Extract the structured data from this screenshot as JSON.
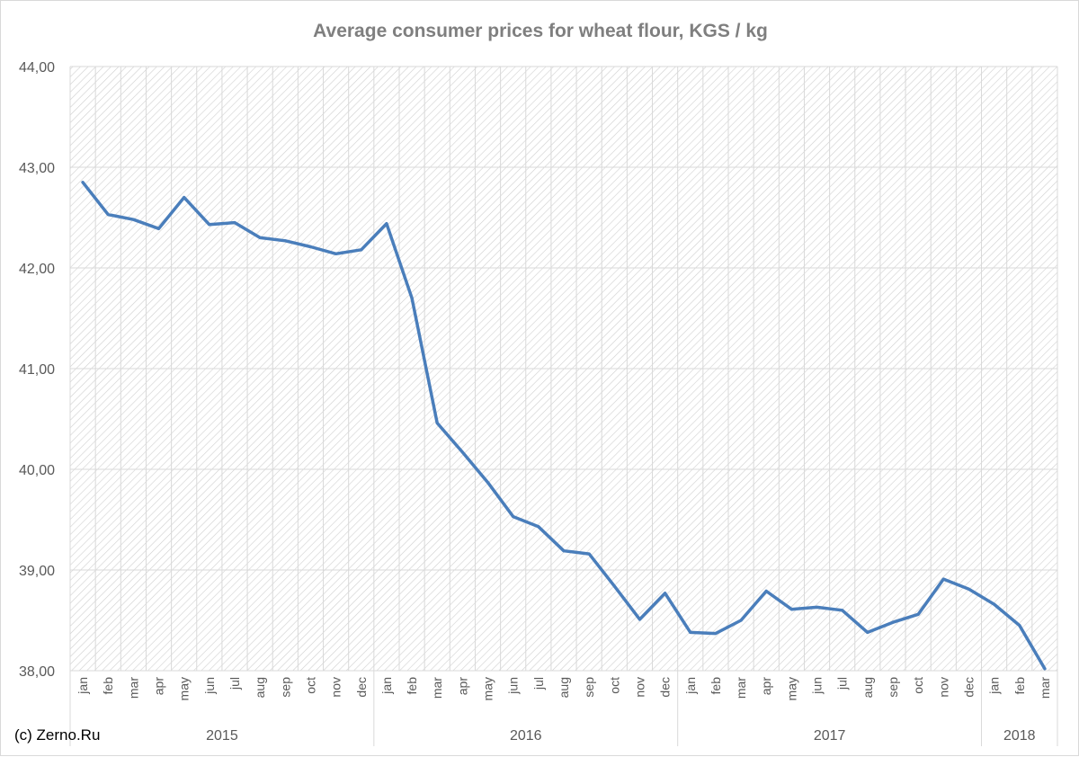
{
  "colors": {
    "line": "#4a7ebb",
    "grid": "#d9d9d9",
    "hatch": "#d0d0d0",
    "text": "#595959",
    "title": "#7f7f7f"
  },
  "copyright": "(c) Zerno.Ru",
  "chart_data": {
    "type": "line",
    "title": "Average consumer prices for wheat flour, KGS / kg",
    "xlabel": "",
    "ylabel": "",
    "ylim": [
      38,
      44
    ],
    "yticks": [
      "38,00",
      "39,00",
      "40,00",
      "41,00",
      "42,00",
      "43,00",
      "44,00"
    ],
    "grid": true,
    "legend": "none",
    "categories": [
      "jan",
      "feb",
      "mar",
      "apr",
      "may",
      "jun",
      "jul",
      "aug",
      "sep",
      "oct",
      "nov",
      "dec",
      "jan",
      "feb",
      "mar",
      "apr",
      "may",
      "jun",
      "jul",
      "aug",
      "sep",
      "oct",
      "nov",
      "dec",
      "jan",
      "feb",
      "mar",
      "apr",
      "may",
      "jun",
      "jul",
      "aug",
      "sep",
      "oct",
      "nov",
      "dec",
      "jan",
      "feb",
      "mar"
    ],
    "year_groups": [
      {
        "label": "2015",
        "count": 12
      },
      {
        "label": "2016",
        "count": 12
      },
      {
        "label": "2017",
        "count": 12
      },
      {
        "label": "2018",
        "count": 3
      }
    ],
    "series": [
      {
        "values": [
          42.85,
          42.53,
          42.48,
          42.39,
          42.7,
          42.43,
          42.45,
          42.3,
          42.27,
          42.21,
          42.14,
          42.18,
          42.44,
          41.7,
          40.46,
          40.17,
          39.87,
          39.53,
          39.43,
          39.19,
          39.16,
          38.84,
          38.51,
          38.77,
          38.38,
          38.37,
          38.5,
          38.79,
          38.61,
          38.63,
          38.6,
          38.38,
          38.48,
          38.56,
          38.91,
          38.81,
          38.66,
          38.45,
          38.02
        ]
      }
    ]
  }
}
